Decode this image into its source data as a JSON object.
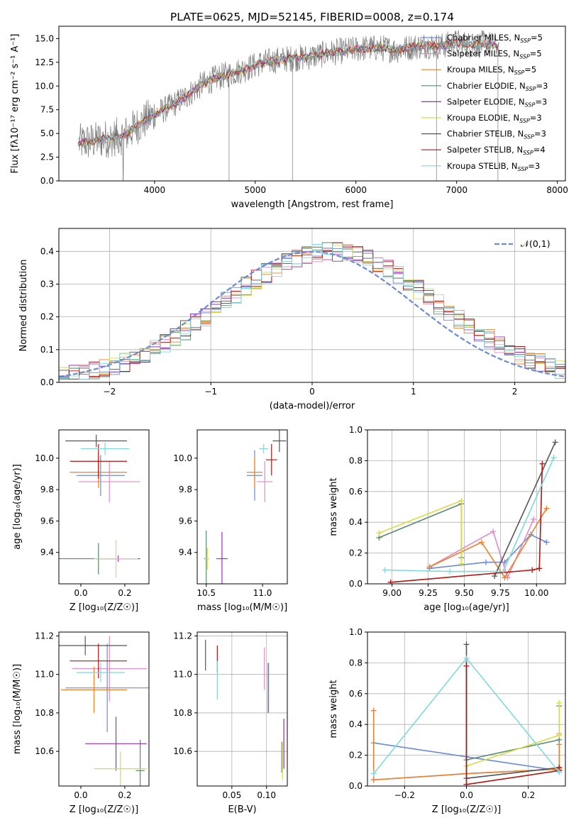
{
  "figure": {
    "title": "PLATE=0625, MJD=52145, FIBERID=0008, z=0.174"
  },
  "chart_data": [
    {
      "type": "line",
      "id": "spectrum",
      "xlabel": "wavelength [Angstrom, rest frame]",
      "ylabel": "Flux [fλ10⁻¹⁷ erg cm⁻² s⁻¹ A⁻¹]",
      "xlim": [
        3050,
        8080
      ],
      "ylim": [
        0,
        16.3
      ],
      "xticks": [
        4000,
        5000,
        6000,
        7000,
        8000
      ],
      "yticks": [
        0.0,
        2.5,
        5.0,
        7.5,
        10.0,
        12.5,
        15.0
      ],
      "grid": false,
      "legend_position": "top-right",
      "data_x": [
        3250,
        3400,
        3550,
        3700,
        3850,
        4000,
        4150,
        4300,
        4450,
        4600,
        4750,
        4900,
        5050,
        5200,
        5350,
        5500,
        5650,
        5800,
        5950,
        6100,
        6250,
        6400,
        6550,
        6700,
        6850,
        7000,
        7150,
        7300,
        7400
      ],
      "data_y": [
        4.0,
        4.2,
        4.5,
        4.8,
        6.0,
        7.0,
        7.8,
        8.8,
        10.0,
        10.8,
        11.3,
        11.8,
        12.4,
        12.7,
        12.9,
        13.0,
        13.3,
        13.6,
        13.8,
        14.0,
        14.0,
        13.8,
        14.1,
        14.3,
        14.2,
        14.6,
        14.3,
        14.5,
        14.2
      ],
      "data_noise": 1.6,
      "model_wave_range": [
        3240,
        7420
      ],
      "series": [
        {
          "name": "Chabrier MILES, N_SSP=5",
          "color": "#6b8bd6"
        },
        {
          "name": "Salpeter MILES, N_SSP=5",
          "color": "#e28bc7"
        },
        {
          "name": "Kroupa MILES, N_SSP=5",
          "color": "#e8822e"
        },
        {
          "name": "Chabrier ELODIE, N_SSP=3",
          "color": "#5a8a6e"
        },
        {
          "name": "Salpeter ELODIE, N_SSP=3",
          "color": "#9b2fb8"
        },
        {
          "name": "Kroupa ELODIE, N_SSP=3",
          "color": "#d6dc4a"
        },
        {
          "name": "Chabrier STELIB, N_SSP=3",
          "color": "#555555"
        },
        {
          "name": "Salpeter STELIB, N_SSP=4",
          "color": "#b5140f"
        },
        {
          "name": "Kroupa STELIB, N_SSP=3",
          "color": "#7fd8e0"
        }
      ],
      "legend_labels": [
        {
          "pre": "Chabrier MILES, N",
          "sub": "SSP",
          "post": "=5"
        },
        {
          "pre": "Salpeter MILES, N",
          "sub": "SSP",
          "post": "=5"
        },
        {
          "pre": "Kroupa MILES, N",
          "sub": "SSP",
          "post": "=5"
        },
        {
          "pre": "Chabrier ELODIE, N",
          "sub": "SSP",
          "post": "=3"
        },
        {
          "pre": "Salpeter ELODIE, N",
          "sub": "SSP",
          "post": "=3"
        },
        {
          "pre": "Kroupa ELODIE, N",
          "sub": "SSP",
          "post": "=3"
        },
        {
          "pre": "Chabrier STELIB, N",
          "sub": "SSP",
          "post": "=3"
        },
        {
          "pre": "Salpeter STELIB, N",
          "sub": "SSP",
          "post": "=4"
        },
        {
          "pre": "Kroupa STELIB, N",
          "sub": "SSP",
          "post": "=3"
        }
      ]
    },
    {
      "type": "histogram",
      "id": "residuals",
      "xlabel": "(data-model)/error",
      "ylabel": "Normed distribution",
      "xlim": [
        -2.5,
        2.5
      ],
      "ylim": [
        0,
        0.47
      ],
      "xticks": [
        -2,
        -1,
        0,
        1,
        2
      ],
      "yticks": [
        0.0,
        0.1,
        0.2,
        0.3,
        0.4
      ],
      "grid": true,
      "legend_position": "top-right",
      "reference_label": "𝒩(0,1)",
      "reference_color": "#6b8bd6",
      "bin_width": 0.1,
      "bin_start": -2.5,
      "nbins": 50
    },
    {
      "type": "errorbar",
      "id": "age-vs-Z",
      "xlabel": "Z [log₁₀(Z/Z☉)]",
      "ylabel": "age  [log₁₀(age/yr)]",
      "xlim": [
        -0.1,
        0.31
      ],
      "ylim": [
        9.2,
        10.18
      ],
      "xticks": [
        0.0,
        0.2
      ],
      "yticks": [
        9.4,
        9.6,
        9.8,
        10.0
      ],
      "grid": false,
      "points": [
        {
          "x": 0.09,
          "y": 9.89,
          "xerr": 0.11,
          "yerr": 0.13,
          "color": "#6b8bd6"
        },
        {
          "x": 0.13,
          "y": 9.85,
          "xerr": 0.14,
          "yerr": 0.13,
          "color": "#e28bc7"
        },
        {
          "x": 0.08,
          "y": 9.91,
          "xerr": 0.13,
          "yerr": 0.1,
          "color": "#e8822e"
        },
        {
          "x": 0.08,
          "y": 9.36,
          "xerr": 0.19,
          "yerr": 0.1,
          "color": "#5a8a6e"
        },
        {
          "x": 0.17,
          "y": 9.36,
          "xerr": 0.1,
          "yerr": 0.02,
          "color": "#9b2fb8"
        },
        {
          "x": 0.16,
          "y": 9.36,
          "xerr": 0.1,
          "yerr": 0.12,
          "color": "#d6dc4a"
        },
        {
          "x": 0.07,
          "y": 10.11,
          "xerr": 0.14,
          "yerr": 0.04,
          "color": "#555555"
        },
        {
          "x": 0.08,
          "y": 9.98,
          "xerr": 0.13,
          "yerr": 0.11,
          "color": "#b5140f"
        },
        {
          "x": 0.11,
          "y": 10.06,
          "xerr": 0.11,
          "yerr": 0.04,
          "color": "#7fd8e0"
        }
      ]
    },
    {
      "type": "errorbar",
      "id": "age-vs-mass",
      "xlabel": "mass [log₁₀(M/M☉)]",
      "ylabel": "",
      "xlim": [
        10.42,
        11.22
      ],
      "ylim": [
        9.2,
        10.18
      ],
      "xticks": [
        10.5,
        11.0
      ],
      "yticks": [
        9.4,
        9.6,
        9.8,
        10.0
      ],
      "grid": false,
      "points": [
        {
          "x": 10.93,
          "y": 9.89,
          "xerr": 0.07,
          "yerr": 0.16,
          "color": "#6b8bd6"
        },
        {
          "x": 11.02,
          "y": 9.85,
          "xerr": 0.07,
          "yerr": 0.13,
          "color": "#e28bc7"
        },
        {
          "x": 10.93,
          "y": 9.91,
          "xerr": 0.07,
          "yerr": 0.1,
          "color": "#e8822e"
        },
        {
          "x": 10.5,
          "y": 9.36,
          "xerr": 0.02,
          "yerr": 0.18,
          "color": "#5a8a6e"
        },
        {
          "x": 10.64,
          "y": 9.36,
          "xerr": 0.05,
          "yerr": 0.17,
          "color": "#9b2fb8"
        },
        {
          "x": 10.51,
          "y": 9.36,
          "xerr": 0.02,
          "yerr": 0.07,
          "color": "#d6dc4a"
        },
        {
          "x": 11.15,
          "y": 10.11,
          "xerr": 0.06,
          "yerr": 0.07,
          "color": "#555555"
        },
        {
          "x": 11.08,
          "y": 9.99,
          "xerr": 0.05,
          "yerr": 0.1,
          "color": "#b5140f"
        },
        {
          "x": 11.01,
          "y": 10.06,
          "xerr": 0.04,
          "yerr": 0.03,
          "color": "#7fd8e0"
        }
      ]
    },
    {
      "type": "line",
      "id": "mass-weight-vs-age",
      "xlabel": "age  [log₁₀(age/yr)]",
      "ylabel": "mass weight",
      "xlim": [
        8.83,
        10.2
      ],
      "ylim": [
        0,
        1
      ],
      "xticks": [
        9.0,
        9.25,
        9.5,
        9.75,
        10.0
      ],
      "yticks": [
        0.0,
        0.2,
        0.4,
        0.6,
        0.8,
        1.0
      ],
      "grid": true,
      "series": [
        {
          "color": "#6b8bd6",
          "x": [
            9.26,
            9.65,
            9.78,
            9.96,
            10.07
          ],
          "y": [
            0.1,
            0.14,
            0.14,
            0.32,
            0.27
          ]
        },
        {
          "color": "#e28bc7",
          "x": [
            9.26,
            9.7,
            9.8,
            9.98
          ],
          "y": [
            0.11,
            0.34,
            0.04,
            0.42
          ]
        },
        {
          "color": "#e8822e",
          "x": [
            9.26,
            9.62,
            9.78,
            10.07
          ],
          "y": [
            0.11,
            0.27,
            0.04,
            0.49
          ]
        },
        {
          "color": "#5a8a6e",
          "x": [
            8.91,
            9.48,
            9.48
          ],
          "y": [
            0.3,
            0.52,
            0.17
          ]
        },
        {
          "color": "#d6dc4a",
          "x": [
            8.91,
            9.48,
            9.48
          ],
          "y": [
            0.33,
            0.54,
            0.13
          ]
        },
        {
          "color": "#555555",
          "x": [
            9.71,
            10.13
          ],
          "y": [
            0.05,
            0.92
          ]
        },
        {
          "color": "#b5140f",
          "x": [
            8.99,
            9.97,
            10.02,
            10.04
          ],
          "y": [
            0.01,
            0.09,
            0.1,
            0.78
          ]
        },
        {
          "color": "#7fd8e0",
          "x": [
            8.95,
            9.4,
            9.77,
            10.12
          ],
          "y": [
            0.09,
            0.08,
            0.08,
            0.82
          ]
        }
      ]
    },
    {
      "type": "errorbar",
      "id": "mass-vs-Z",
      "xlabel": "Z [log₁₀(Z/Z☉)]",
      "ylabel": "mass [log₁₀(M/M☉)]",
      "xlim": [
        -0.1,
        0.31
      ],
      "ylim": [
        10.42,
        11.22
      ],
      "xticks": [
        0.0,
        0.2
      ],
      "yticks": [
        10.6,
        10.8,
        11.0,
        11.2
      ],
      "grid": false,
      "points": [
        {
          "x": 0.12,
          "y": 10.93,
          "xerr": 0.19,
          "yerr": 0.23,
          "color": "#6b8bd6"
        },
        {
          "x": 0.13,
          "y": 11.03,
          "xerr": 0.17,
          "yerr": 0.17,
          "color": "#e28bc7"
        },
        {
          "x": 0.06,
          "y": 10.92,
          "xerr": 0.15,
          "yerr": 0.12,
          "color": "#e8822e"
        },
        {
          "x": 0.27,
          "y": 10.5,
          "xerr": 0.02,
          "yerr": 0.16,
          "color": "#5a8a6e"
        },
        {
          "x": 0.16,
          "y": 10.64,
          "xerr": 0.14,
          "yerr": 0.14,
          "color": "#9b2fb8"
        },
        {
          "x": 0.18,
          "y": 10.51,
          "xerr": 0.12,
          "yerr": 0.09,
          "color": "#d6dc4a"
        },
        {
          "x": 0.02,
          "y": 11.15,
          "xerr": 0.19,
          "yerr": 0.05,
          "color": "#555555"
        },
        {
          "x": 0.08,
          "y": 11.07,
          "xerr": 0.13,
          "yerr": 0.09,
          "color": "#b5140f"
        },
        {
          "x": 0.09,
          "y": 11.01,
          "xerr": 0.11,
          "yerr": 0.05,
          "color": "#7fd8e0"
        }
      ]
    },
    {
      "type": "errorbar",
      "id": "mass-vs-ebv",
      "xlabel": "E(B-V)",
      "ylabel": "",
      "xlim": [
        0.0,
        0.13
      ],
      "ylim": [
        10.42,
        11.22
      ],
      "xticks": [
        0.05,
        0.1
      ],
      "yticks": [
        10.6,
        10.8,
        11.0,
        11.2
      ],
      "grid": true,
      "points": [
        {
          "x": 0.103,
          "y": 10.93,
          "xerr": 0,
          "yerr": 0.13,
          "color": "#6b8bd6"
        },
        {
          "x": 0.097,
          "y": 11.03,
          "xerr": 0,
          "yerr": 0.11,
          "color": "#e28bc7"
        },
        {
          "x": 0.102,
          "y": 10.93,
          "xerr": 0,
          "yerr": 0.13,
          "color": "#e8822e"
        },
        {
          "x": 0.122,
          "y": 10.57,
          "xerr": 0,
          "yerr": 0.08,
          "color": "#5a8a6e"
        },
        {
          "x": 0.125,
          "y": 10.64,
          "xerr": 0,
          "yerr": 0.13,
          "color": "#9b2fb8"
        },
        {
          "x": 0.123,
          "y": 10.55,
          "xerr": 0,
          "yerr": 0.1,
          "color": "#d6dc4a"
        },
        {
          "x": 0.012,
          "y": 11.1,
          "xerr": 0,
          "yerr": 0.08,
          "color": "#555555"
        },
        {
          "x": 0.029,
          "y": 11.08,
          "xerr": 0,
          "yerr": 0.07,
          "color": "#b5140f"
        },
        {
          "x": 0.029,
          "y": 10.97,
          "xerr": 0,
          "yerr": 0.1,
          "color": "#7fd8e0"
        }
      ]
    },
    {
      "type": "line",
      "id": "mass-weight-vs-Z",
      "xlabel": "Z [log₁₀(Z/Z☉)]",
      "ylabel": "mass weight",
      "xlim": [
        -0.32,
        0.32
      ],
      "ylim": [
        0,
        1
      ],
      "xticks": [
        -0.2,
        0.0,
        0.2
      ],
      "yticks": [
        0.0,
        0.2,
        0.4,
        0.6,
        0.8,
        1.0
      ],
      "grid": true,
      "series": [
        {
          "color": "#6b8bd6",
          "x": [
            -0.3,
            0.0,
            0.3
          ],
          "y": [
            0.28,
            0.19,
            0.1
          ]
        },
        {
          "color": "#e28bc7",
          "x": [
            -0.3,
            0.0,
            0.3,
            0.3
          ],
          "y": [
            0.04,
            0.08,
            0.11,
            0.34
          ]
        },
        {
          "color": "#e8822e",
          "x": [
            -0.3,
            -0.3,
            0.0,
            0.3,
            0.3
          ],
          "y": [
            0.49,
            0.04,
            0.08,
            0.11,
            0.27
          ]
        },
        {
          "color": "#5a8a6e",
          "x": [
            0.0,
            0.3,
            0.3
          ],
          "y": [
            0.17,
            0.3,
            0.52
          ]
        },
        {
          "color": "#d6dc4a",
          "x": [
            0.0,
            0.3,
            0.3
          ],
          "y": [
            0.13,
            0.33,
            0.54
          ]
        },
        {
          "color": "#555555",
          "x": [
            0.0,
            0.0,
            0.3,
            0.3
          ],
          "y": [
            0.92,
            0.05,
            0.12,
            0.1
          ]
        },
        {
          "color": "#b5140f",
          "x": [
            0.0,
            0.0,
            0.3,
            0.3
          ],
          "y": [
            0.78,
            0.01,
            0.1,
            0.12
          ]
        },
        {
          "color": "#7fd8e0",
          "x": [
            -0.3,
            0.0,
            0.3
          ],
          "y": [
            0.08,
            0.83,
            0.09
          ]
        }
      ]
    }
  ]
}
